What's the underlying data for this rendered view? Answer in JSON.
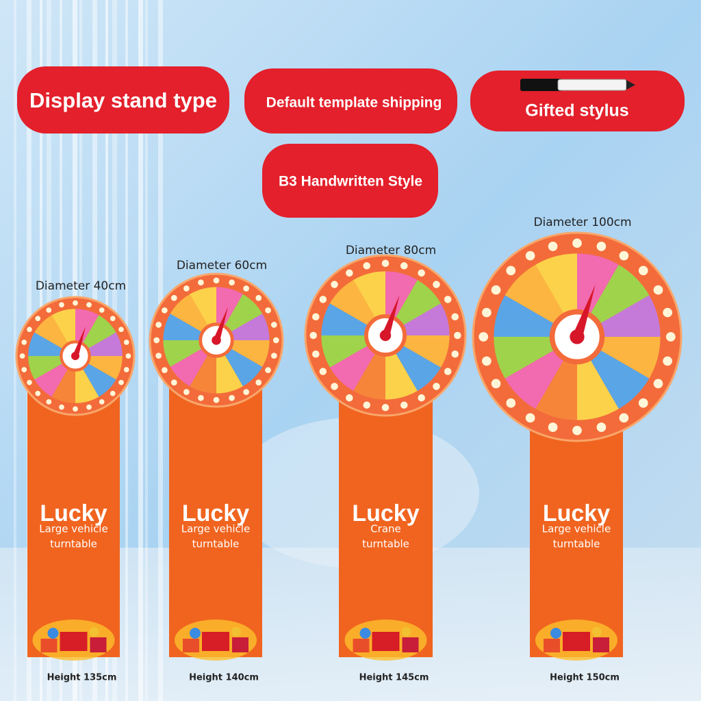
{
  "badges": [
    "Display stand type",
    "Default template shipping",
    "Gifted stylus",
    "B3 Handwritten Style"
  ],
  "stands": [
    {
      "diameter": "Diameter 40cm",
      "brand": "Lucky",
      "lines": [
        "Large vehicle",
        "turntable"
      ],
      "height": "Height 135cm"
    },
    {
      "diameter": "Diameter 60cm",
      "brand": "Lucky",
      "lines": [
        "Large vehicle",
        "turntable"
      ],
      "height": "Height 140cm"
    },
    {
      "diameter": "Diameter 80cm",
      "brand": "Lucky",
      "lines": [
        "Crane",
        "turntable"
      ],
      "height": "Height 145cm"
    },
    {
      "diameter": "Diameter 100cm",
      "brand": "Lucky",
      "lines": [
        "Large vehicle",
        "turntable"
      ],
      "height": "Height 150cm"
    }
  ]
}
